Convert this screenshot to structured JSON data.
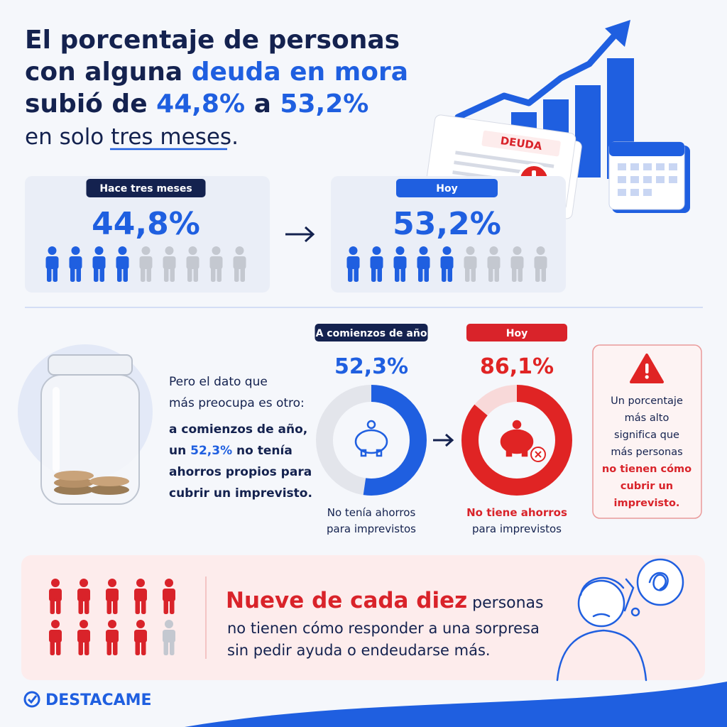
{
  "header": {
    "title_lines": [
      [
        {
          "text": "El porcentaje de personas",
          "color": "#14224f"
        }
      ],
      [
        {
          "text": "con alguna ",
          "color": "#14224f"
        },
        {
          "text": "deuda en mora",
          "color": "#1f5fe0"
        }
      ],
      [
        {
          "text": "subió de ",
          "color": "#14224f"
        },
        {
          "text": "44,8%",
          "color": "#1f5fe0"
        },
        {
          "text": " a ",
          "color": "#14224f"
        },
        {
          "text": "53,2%",
          "color": "#1f5fe0"
        }
      ]
    ],
    "subtitle": [
      {
        "text": "en solo ",
        "color": "#14224f"
      },
      {
        "text": "tres meses",
        "color": "#14224f"
      },
      {
        "text": ".",
        "color": "#14224f"
      }
    ]
  },
  "illustration": {
    "doc_label": "DEUDA"
  },
  "comparison": [
    {
      "label": "Hace tres meses",
      "value": "44,8%",
      "filled": 4,
      "total": 9,
      "pill_color": "#14224f"
    },
    {
      "label": "Hoy",
      "value": "53,2%",
      "filled": 5,
      "total": 9,
      "pill_color": "#1f5fe0"
    }
  ],
  "savings": {
    "intro_lines": [
      "Pero el dato que",
      "más preocupa es otro:"
    ],
    "emphasis_lines": [
      [
        {
          "text": "a comienzos de año,",
          "color": "#14224f"
        }
      ],
      [
        {
          "text": "un ",
          "color": "#14224f"
        },
        {
          "text": "52,3%",
          "color": "#1f5fe0"
        },
        {
          "text": " no tenía",
          "color": "#14224f"
        }
      ],
      [
        {
          "text": "ahorros propios para",
          "color": "#14224f"
        }
      ],
      [
        {
          "text": "cubrir un imprevisto.",
          "color": "#14224f"
        }
      ]
    ],
    "donuts": [
      {
        "label": "A comienzos de año",
        "value": 52.3,
        "value_label": "52,3%",
        "color": "#1f5fe0",
        "track": "#e3e5eb",
        "pill_color": "#14224f",
        "caption_lines": [
          {
            "text": "No tenía ahorros",
            "color": "#14224f",
            "bold": false
          },
          {
            "text": "para imprevistos",
            "color": "#14224f",
            "bold": false
          }
        ]
      },
      {
        "label": "Hoy",
        "value": 86.1,
        "value_label": "86,1%",
        "color": "#e02424",
        "track": "#f8d9d9",
        "pill_color": "#d9232a",
        "caption_lines": [
          {
            "text": "No tiene ahorros",
            "color": "#d9232a",
            "bold": true
          },
          {
            "text": "para imprevistos",
            "color": "#14224f",
            "bold": false
          }
        ]
      }
    ]
  },
  "alert": {
    "lines": [
      {
        "text": "Un porcentaje",
        "strong": false
      },
      {
        "text": "más alto",
        "strong": false
      },
      {
        "text": "significa que",
        "strong": false
      },
      {
        "text": "más personas",
        "strong": false
      },
      {
        "text": "no tienen cómo",
        "strong": true
      },
      {
        "text": "cubrir un",
        "strong": true
      },
      {
        "text": "imprevisto.",
        "strong": true
      }
    ]
  },
  "conclusion": {
    "people_filled": 9,
    "people_total": 10,
    "headline": "Nueve de cada diez",
    "headline_rest": " personas",
    "lines": [
      "no tienen cómo responder a una sorpresa",
      "sin pedir ayuda o endeudarse más."
    ]
  },
  "brand": "DESTACAME"
}
